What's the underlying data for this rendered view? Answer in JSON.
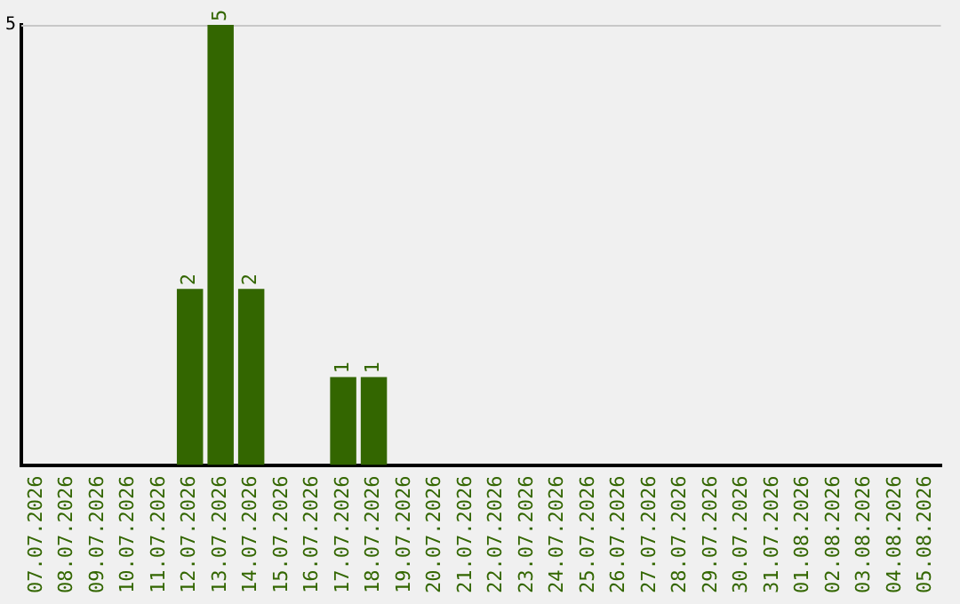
{
  "chart_data": {
    "type": "bar",
    "categories": [
      "07.07.2026",
      "08.07.2026",
      "09.07.2026",
      "10.07.2026",
      "11.07.2026",
      "12.07.2026",
      "13.07.2026",
      "14.07.2026",
      "15.07.2026",
      "16.07.2026",
      "17.07.2026",
      "18.07.2026",
      "19.07.2026",
      "20.07.2026",
      "21.07.2026",
      "22.07.2026",
      "23.07.2026",
      "24.07.2026",
      "25.07.2026",
      "26.07.2026",
      "27.07.2026",
      "28.07.2026",
      "29.07.2026",
      "30.07.2026",
      "31.07.2026",
      "01.08.2026",
      "02.08.2026",
      "03.08.2026",
      "04.08.2026",
      "05.08.2026"
    ],
    "values": [
      0,
      0,
      0,
      0,
      0,
      2,
      5,
      2,
      0,
      0,
      1,
      1,
      0,
      0,
      0,
      0,
      0,
      0,
      0,
      0,
      0,
      0,
      0,
      0,
      0,
      0,
      0,
      0,
      0,
      0
    ],
    "value_labels": [
      null,
      null,
      null,
      null,
      null,
      "2",
      "5",
      "2",
      null,
      null,
      "1",
      "1",
      null,
      null,
      null,
      null,
      null,
      null,
      null,
      null,
      null,
      null,
      null,
      null,
      null,
      null,
      null,
      null,
      null,
      null
    ],
    "color": "#336600",
    "ylim": [
      0,
      5
    ],
    "yticks": [
      5
    ],
    "legend": false
  }
}
